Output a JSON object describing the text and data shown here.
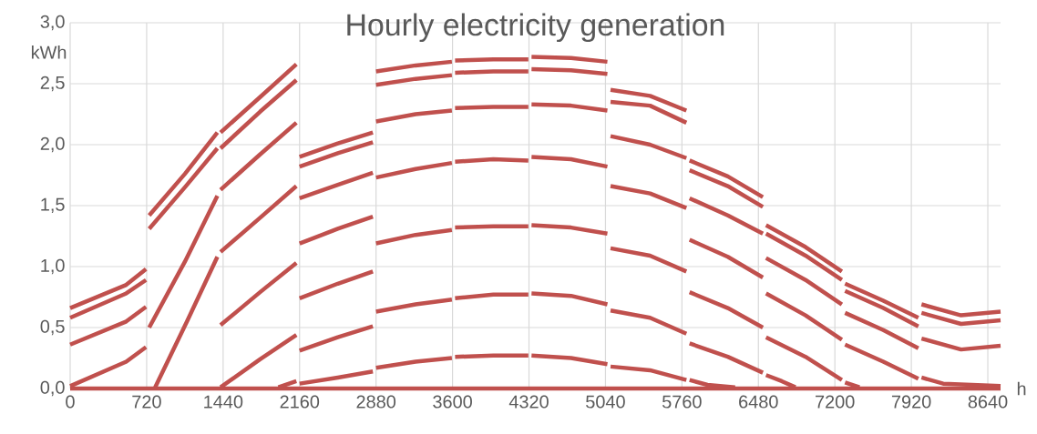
{
  "chart_data": {
    "type": "line",
    "title": "Hourly electricity generation",
    "xlabel": "h",
    "ylabel": "kWh",
    "grid": true,
    "line_style": "solid",
    "xlim": [
      0,
      8760
    ],
    "ylim": [
      0,
      3
    ],
    "xticks": [
      0,
      720,
      1440,
      2160,
      2880,
      3600,
      4320,
      5040,
      5760,
      6480,
      7200,
      7920,
      8640
    ],
    "yticks": [
      {
        "value": 0,
        "label": "0,0"
      },
      {
        "value": 0.5,
        "label": "0,5"
      },
      {
        "value": 1,
        "label": "1,0"
      },
      {
        "value": 1.5,
        "label": "1,5"
      },
      {
        "value": 2,
        "label": "2,0"
      },
      {
        "value": 2.5,
        "label": "2,5"
      },
      {
        "value": 3,
        "label": "3,0"
      }
    ],
    "series": [
      {
        "color": "#c0504d",
        "x": [
          0,
          8760
        ],
        "values": [
          0,
          0
        ]
      },
      {
        "color": "#c0504d",
        "x": [
          0,
          528,
          714
        ],
        "values": [
          0.66,
          0.85,
          0.98
        ]
      },
      {
        "color": "#c0504d",
        "x": [
          0,
          528,
          714
        ],
        "values": [
          0.58,
          0.78,
          0.89
        ]
      },
      {
        "color": "#c0504d",
        "x": [
          0,
          528,
          714
        ],
        "values": [
          0.36,
          0.55,
          0.67
        ]
      },
      {
        "color": "#c0504d",
        "x": [
          0,
          528,
          714
        ],
        "values": [
          0.02,
          0.22,
          0.34
        ]
      },
      {
        "color": "#c0504d",
        "x": [
          744,
          1080,
          1386
        ],
        "values": [
          1.42,
          1.76,
          2.1
        ]
      },
      {
        "color": "#c0504d",
        "x": [
          744,
          1080,
          1386
        ],
        "values": [
          1.31,
          1.65,
          1.97
        ]
      },
      {
        "color": "#c0504d",
        "x": [
          744,
          1080,
          1386
        ],
        "values": [
          0.5,
          1.04,
          1.58
        ]
      },
      {
        "color": "#c0504d",
        "x": [
          800,
          1100,
          1386
        ],
        "values": [
          0.01,
          0.55,
          1.08
        ]
      },
      {
        "color": "#c0504d",
        "x": [
          1416,
          1788,
          2130
        ],
        "values": [
          2.1,
          2.39,
          2.66
        ]
      },
      {
        "color": "#c0504d",
        "x": [
          1416,
          1788,
          2130
        ],
        "values": [
          1.97,
          2.27,
          2.53
        ]
      },
      {
        "color": "#c0504d",
        "x": [
          1416,
          1788,
          2130
        ],
        "values": [
          1.63,
          1.92,
          2.18
        ]
      },
      {
        "color": "#c0504d",
        "x": [
          1416,
          1788,
          2130
        ],
        "values": [
          1.12,
          1.4,
          1.66
        ]
      },
      {
        "color": "#c0504d",
        "x": [
          1416,
          1788,
          2130
        ],
        "values": [
          0.52,
          0.79,
          1.03
        ]
      },
      {
        "color": "#c0504d",
        "x": [
          1416,
          1788,
          2130
        ],
        "values": [
          0.01,
          0.24,
          0.44
        ]
      },
      {
        "color": "#c0504d",
        "x": [
          1960,
          2130
        ],
        "values": [
          0.01,
          0.06
        ]
      },
      {
        "color": "#c0504d",
        "x": [
          2160,
          2520,
          2850
        ],
        "values": [
          1.9,
          2.01,
          2.1
        ]
      },
      {
        "color": "#c0504d",
        "x": [
          2160,
          2520,
          2850
        ],
        "values": [
          1.82,
          1.93,
          2.02
        ]
      },
      {
        "color": "#c0504d",
        "x": [
          2160,
          2520,
          2850
        ],
        "values": [
          1.56,
          1.67,
          1.77
        ]
      },
      {
        "color": "#c0504d",
        "x": [
          2160,
          2520,
          2850
        ],
        "values": [
          1.19,
          1.31,
          1.41
        ]
      },
      {
        "color": "#c0504d",
        "x": [
          2160,
          2520,
          2850
        ],
        "values": [
          0.74,
          0.86,
          0.96
        ]
      },
      {
        "color": "#c0504d",
        "x": [
          2160,
          2520,
          2850
        ],
        "values": [
          0.31,
          0.42,
          0.51
        ]
      },
      {
        "color": "#c0504d",
        "x": [
          2160,
          2520,
          2850
        ],
        "values": [
          0.04,
          0.09,
          0.14
        ]
      },
      {
        "color": "#c0504d",
        "x": [
          2880,
          3252,
          3594
        ],
        "values": [
          2.6,
          2.65,
          2.68
        ]
      },
      {
        "color": "#c0504d",
        "x": [
          2880,
          3252,
          3594
        ],
        "values": [
          2.49,
          2.54,
          2.57
        ]
      },
      {
        "color": "#c0504d",
        "x": [
          2880,
          3252,
          3594
        ],
        "values": [
          2.19,
          2.25,
          2.28
        ]
      },
      {
        "color": "#c0504d",
        "x": [
          2880,
          3252,
          3594
        ],
        "values": [
          1.73,
          1.8,
          1.85
        ]
      },
      {
        "color": "#c0504d",
        "x": [
          2880,
          3252,
          3594
        ],
        "values": [
          1.19,
          1.26,
          1.3
        ]
      },
      {
        "color": "#c0504d",
        "x": [
          2880,
          3252,
          3594
        ],
        "values": [
          0.63,
          0.69,
          0.73
        ]
      },
      {
        "color": "#c0504d",
        "x": [
          2880,
          3252,
          3594
        ],
        "values": [
          0.17,
          0.22,
          0.25
        ]
      },
      {
        "color": "#c0504d",
        "x": [
          3624,
          3984,
          4314
        ],
        "values": [
          2.69,
          2.7,
          2.7
        ]
      },
      {
        "color": "#c0504d",
        "x": [
          3624,
          3984,
          4314
        ],
        "values": [
          2.59,
          2.6,
          2.6
        ]
      },
      {
        "color": "#c0504d",
        "x": [
          3624,
          3984,
          4314
        ],
        "values": [
          2.3,
          2.31,
          2.31
        ]
      },
      {
        "color": "#c0504d",
        "x": [
          3624,
          3984,
          4314
        ],
        "values": [
          1.86,
          1.88,
          1.87
        ]
      },
      {
        "color": "#c0504d",
        "x": [
          3624,
          3984,
          4314
        ],
        "values": [
          1.32,
          1.33,
          1.33
        ]
      },
      {
        "color": "#c0504d",
        "x": [
          3624,
          3984,
          4314
        ],
        "values": [
          0.74,
          0.77,
          0.77
        ]
      },
      {
        "color": "#c0504d",
        "x": [
          3624,
          3984,
          4314
        ],
        "values": [
          0.26,
          0.27,
          0.27
        ]
      },
      {
        "color": "#c0504d",
        "x": [
          4344,
          4716,
          5058
        ],
        "values": [
          2.72,
          2.71,
          2.68
        ]
      },
      {
        "color": "#c0504d",
        "x": [
          4344,
          4716,
          5058
        ],
        "values": [
          2.62,
          2.61,
          2.58
        ]
      },
      {
        "color": "#c0504d",
        "x": [
          4344,
          4716,
          5058
        ],
        "values": [
          2.33,
          2.32,
          2.28
        ]
      },
      {
        "color": "#c0504d",
        "x": [
          4344,
          4716,
          5058
        ],
        "values": [
          1.9,
          1.88,
          1.82
        ]
      },
      {
        "color": "#c0504d",
        "x": [
          4344,
          4716,
          5058
        ],
        "values": [
          1.34,
          1.32,
          1.27
        ]
      },
      {
        "color": "#c0504d",
        "x": [
          4344,
          4716,
          5058
        ],
        "values": [
          0.78,
          0.76,
          0.69
        ]
      },
      {
        "color": "#c0504d",
        "x": [
          4344,
          4716,
          5058
        ],
        "values": [
          0.27,
          0.25,
          0.2
        ]
      },
      {
        "color": "#c0504d",
        "x": [
          5088,
          5460,
          5802
        ],
        "values": [
          2.45,
          2.4,
          2.28
        ]
      },
      {
        "color": "#c0504d",
        "x": [
          5088,
          5460,
          5802
        ],
        "values": [
          2.35,
          2.32,
          2.18
        ]
      },
      {
        "color": "#c0504d",
        "x": [
          5088,
          5460,
          5802
        ],
        "values": [
          2.07,
          2.0,
          1.89
        ]
      },
      {
        "color": "#c0504d",
        "x": [
          5088,
          5460,
          5802
        ],
        "values": [
          1.66,
          1.6,
          1.48
        ]
      },
      {
        "color": "#c0504d",
        "x": [
          5088,
          5460,
          5802
        ],
        "values": [
          1.15,
          1.09,
          0.96
        ]
      },
      {
        "color": "#c0504d",
        "x": [
          5088,
          5460,
          5802
        ],
        "values": [
          0.64,
          0.58,
          0.45
        ]
      },
      {
        "color": "#c0504d",
        "x": [
          5088,
          5460,
          5802
        ],
        "values": [
          0.18,
          0.15,
          0.07
        ]
      },
      {
        "color": "#c0504d",
        "x": [
          5832,
          6192,
          6522
        ],
        "values": [
          1.87,
          1.74,
          1.57
        ]
      },
      {
        "color": "#c0504d",
        "x": [
          5832,
          6192,
          6522
        ],
        "values": [
          1.79,
          1.66,
          1.49
        ]
      },
      {
        "color": "#c0504d",
        "x": [
          5832,
          6192,
          6522
        ],
        "values": [
          1.56,
          1.42,
          1.27
        ]
      },
      {
        "color": "#c0504d",
        "x": [
          5832,
          6192,
          6522
        ],
        "values": [
          1.22,
          1.08,
          0.91
        ]
      },
      {
        "color": "#c0504d",
        "x": [
          5832,
          6192,
          6522
        ],
        "values": [
          0.79,
          0.66,
          0.5
        ]
      },
      {
        "color": "#c0504d",
        "x": [
          5832,
          6192,
          6522
        ],
        "values": [
          0.37,
          0.26,
          0.13
        ]
      },
      {
        "color": "#c0504d",
        "x": [
          5832,
          6000,
          6261
        ],
        "values": [
          0.07,
          0.03,
          0.01
        ]
      },
      {
        "color": "#c0504d",
        "x": [
          6552,
          6924,
          7266
        ],
        "values": [
          1.34,
          1.16,
          0.96
        ]
      },
      {
        "color": "#c0504d",
        "x": [
          6552,
          6924,
          7266
        ],
        "values": [
          1.27,
          1.09,
          0.89
        ]
      },
      {
        "color": "#c0504d",
        "x": [
          6552,
          6924,
          7266
        ],
        "values": [
          1.07,
          0.89,
          0.69
        ]
      },
      {
        "color": "#c0504d",
        "x": [
          6552,
          6924,
          7266
        ],
        "values": [
          0.78,
          0.6,
          0.4
        ]
      },
      {
        "color": "#c0504d",
        "x": [
          6552,
          6924,
          7266
        ],
        "values": [
          0.42,
          0.26,
          0.07
        ]
      },
      {
        "color": "#c0504d",
        "x": [
          6552,
          6700,
          6829
        ],
        "values": [
          0.11,
          0.06,
          0.01
        ]
      },
      {
        "color": "#c0504d",
        "x": [
          7296,
          7656,
          7986
        ],
        "values": [
          0.86,
          0.72,
          0.58
        ]
      },
      {
        "color": "#c0504d",
        "x": [
          7296,
          7656,
          7986
        ],
        "values": [
          0.8,
          0.66,
          0.51
        ]
      },
      {
        "color": "#c0504d",
        "x": [
          7296,
          7656,
          7986
        ],
        "values": [
          0.62,
          0.48,
          0.33
        ]
      },
      {
        "color": "#c0504d",
        "x": [
          7296,
          7656,
          7986
        ],
        "values": [
          0.36,
          0.22,
          0.08
        ]
      },
      {
        "color": "#c0504d",
        "x": [
          7296,
          7432
        ],
        "values": [
          0.05,
          0.01
        ]
      },
      {
        "color": "#c0504d",
        "x": [
          8016,
          8388,
          8760
        ],
        "values": [
          0.69,
          0.6,
          0.63
        ]
      },
      {
        "color": "#c0504d",
        "x": [
          8016,
          8388,
          8760
        ],
        "values": [
          0.62,
          0.53,
          0.56
        ]
      },
      {
        "color": "#c0504d",
        "x": [
          8016,
          8388,
          8760
        ],
        "values": [
          0.41,
          0.32,
          0.35
        ]
      },
      {
        "color": "#c0504d",
        "x": [
          8016,
          8220,
          8760
        ],
        "values": [
          0.09,
          0.04,
          0.02
        ]
      }
    ]
  }
}
